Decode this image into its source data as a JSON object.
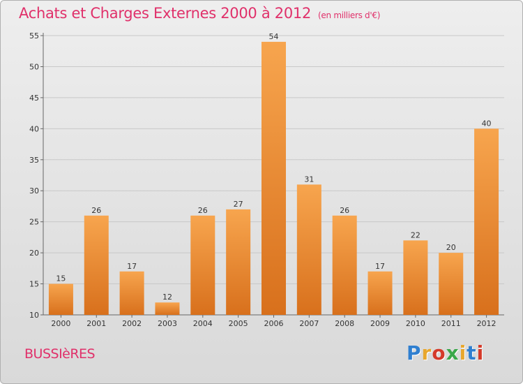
{
  "header": {
    "title": "Achats et Charges Externes 2000 à 2012",
    "subtitle": "(en milliers d'€)"
  },
  "footer": {
    "commune": "BUSSIèRES",
    "logo_letters": [
      "P",
      "r",
      "o",
      "x",
      "i",
      "t",
      "i"
    ],
    "logo_colors": [
      "#2f7fd0",
      "#e8a72d",
      "#d43a2a",
      "#3aa84a",
      "#e8a72d",
      "#2f7fd0",
      "#d43a2a"
    ]
  },
  "chart_data": {
    "type": "bar",
    "title": "Achats et Charges Externes 2000 à 2012",
    "subtitle": "(en milliers d'€)",
    "categories": [
      "2000",
      "2001",
      "2002",
      "2003",
      "2004",
      "2005",
      "2006",
      "2007",
      "2008",
      "2009",
      "2010",
      "2011",
      "2012"
    ],
    "values": [
      15,
      26,
      17,
      12,
      26,
      27,
      54,
      31,
      26,
      17,
      22,
      20,
      40
    ],
    "ylim": [
      10,
      55
    ],
    "yticks": [
      10,
      15,
      20,
      25,
      30,
      35,
      40,
      45,
      50,
      55
    ],
    "grid": true,
    "colors": {
      "bar_light": "#f7a54e",
      "bar_dark": "#d8701c",
      "title": "#e0306a"
    }
  }
}
